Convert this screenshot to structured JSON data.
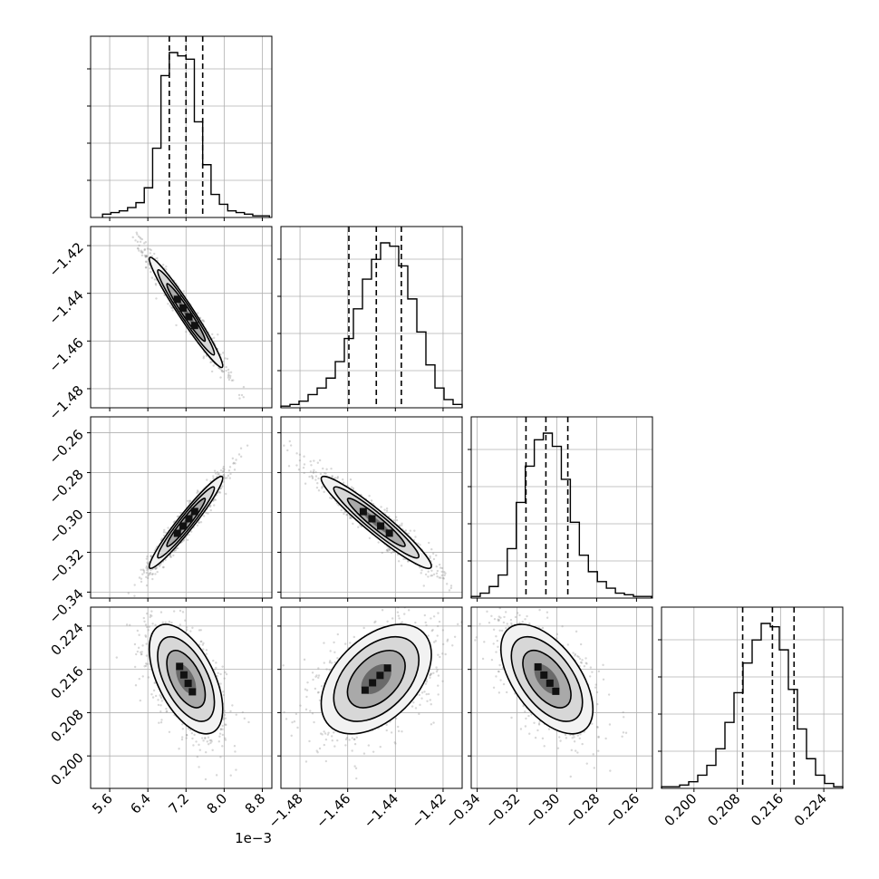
{
  "chart_data": {
    "type": "corner",
    "grid": true,
    "colors": {
      "hist": "#000000",
      "contour": "#000000",
      "points": "#8c8c8c",
      "grid": "#b0b0b0"
    },
    "parameters": [
      {
        "range": [
          5.2,
          9.0
        ],
        "ticks": [
          5.6,
          6.4,
          7.2,
          8.0,
          8.8
        ],
        "tick_labels": [
          "5.6",
          "6.4",
          "7.2",
          "8.0",
          "8.8"
        ],
        "offset_label": "1e−3",
        "quantiles": [
          6.85,
          7.2,
          7.55
        ],
        "mean": 7.2,
        "sd": 0.35
      },
      {
        "range": [
          -1.488,
          -1.412
        ],
        "ticks": [
          -1.48,
          -1.46,
          -1.44,
          -1.42
        ],
        "tick_labels": [
          "−1.48",
          "−1.46",
          "−1.44",
          "−1.42"
        ],
        "offset_label": "",
        "quantiles": [
          -1.4595,
          -1.448,
          -1.4375
        ],
        "mean": -1.448,
        "sd": 0.0105
      },
      {
        "range": [
          -0.343,
          -0.252
        ],
        "ticks": [
          -0.34,
          -0.32,
          -0.3,
          -0.28,
          -0.26
        ],
        "tick_labels": [
          "−0.34",
          "−0.32",
          "−0.30",
          "−0.28",
          "−0.26"
        ],
        "offset_label": "",
        "quantiles": [
          -0.3155,
          -0.3055,
          -0.2945
        ],
        "mean": -0.305,
        "sd": 0.0105
      },
      {
        "range": [
          0.194,
          0.2275
        ],
        "ticks": [
          0.2,
          0.208,
          0.216,
          0.224
        ],
        "tick_labels": [
          "0.200",
          "0.208",
          "0.216",
          "0.224"
        ],
        "offset_label": "",
        "quantiles": [
          0.209,
          0.2145,
          0.2185
        ],
        "mean": 0.2142,
        "sd": 0.0046
      }
    ],
    "correlation": [
      [
        1.0,
        -0.97,
        0.96,
        -0.55
      ],
      [
        -0.97,
        1.0,
        -0.95,
        0.45
      ],
      [
        0.96,
        -0.95,
        1.0,
        -0.55
      ],
      [
        -0.55,
        0.45,
        -0.55,
        1.0
      ]
    ],
    "histograms": [
      {
        "bin_counts": [
          2,
          3,
          4,
          6,
          9,
          18,
          42,
          86,
          100,
          98,
          96,
          58,
          32,
          14,
          8,
          4,
          3,
          2,
          1,
          1
        ]
      },
      {
        "bin_counts": [
          1,
          2,
          4,
          8,
          12,
          18,
          28,
          42,
          60,
          78,
          90,
          100,
          98,
          86,
          66,
          46,
          26,
          12,
          5,
          2
        ]
      },
      {
        "bin_counts": [
          1,
          3,
          7,
          14,
          30,
          58,
          80,
          96,
          100,
          92,
          72,
          46,
          26,
          16,
          10,
          6,
          3,
          2,
          1,
          1
        ]
      },
      {
        "bin_counts": [
          1,
          1,
          2,
          4,
          8,
          14,
          24,
          40,
          58,
          76,
          90,
          100,
          98,
          84,
          60,
          36,
          18,
          8,
          3,
          1
        ]
      }
    ]
  }
}
